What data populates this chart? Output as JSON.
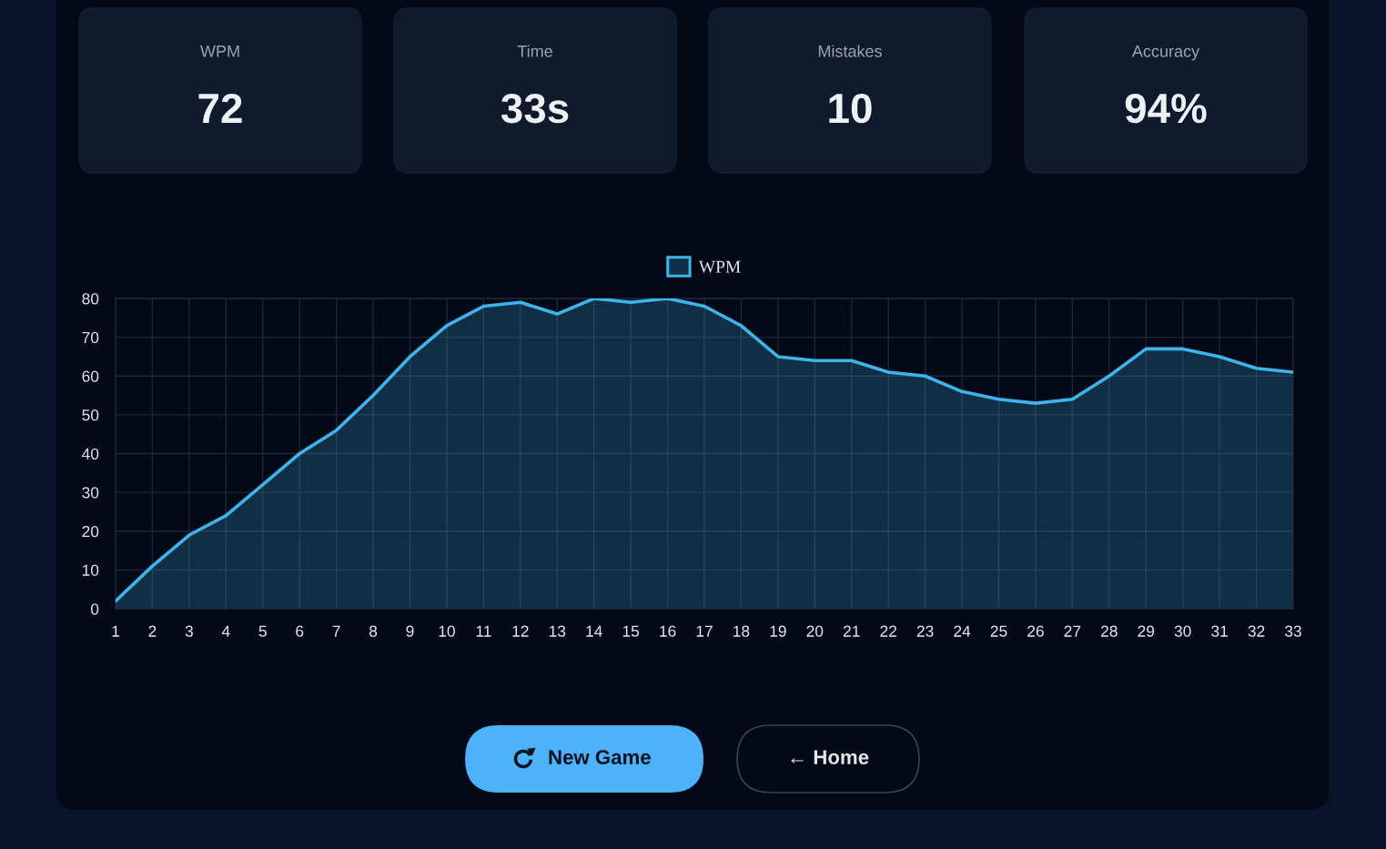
{
  "chart_data": [
    {
      "type": "other",
      "title": "WPM",
      "annotations": [
        "72"
      ]
    },
    {
      "type": "other",
      "title": "Time",
      "annotations": [
        "33s"
      ]
    },
    {
      "type": "other",
      "title": "Mistakes",
      "annotations": [
        "10"
      ]
    },
    {
      "type": "other",
      "title": "Accuracy",
      "annotations": [
        "94%"
      ]
    },
    {
      "type": "area",
      "categories": [
        "1",
        "2",
        "3",
        "4",
        "5",
        "6",
        "7",
        "8",
        "9",
        "10",
        "11",
        "12",
        "13",
        "14",
        "15",
        "16",
        "17",
        "18",
        "19",
        "20",
        "21",
        "22",
        "23",
        "24",
        "25",
        "26",
        "27",
        "28",
        "29",
        "30",
        "31",
        "32",
        "33"
      ],
      "series": [
        {
          "name": "WPM",
          "color": "#3db4ea",
          "values": [
            2,
            11,
            19,
            24,
            32,
            40,
            46,
            55,
            65,
            73,
            78,
            79,
            76,
            80,
            79,
            80,
            78,
            73,
            65,
            64,
            64,
            61,
            60,
            56,
            54,
            53,
            54,
            60,
            67,
            67,
            65,
            62,
            61
          ]
        }
      ],
      "ylim": [
        0,
        80
      ],
      "yticks": [
        0,
        10,
        20,
        30,
        40,
        50,
        60,
        70,
        80
      ],
      "grid": true,
      "legend": "top"
    },
    {
      "type": "other",
      "annotations": [
        "New Game",
        "← Home"
      ]
    }
  ]
}
